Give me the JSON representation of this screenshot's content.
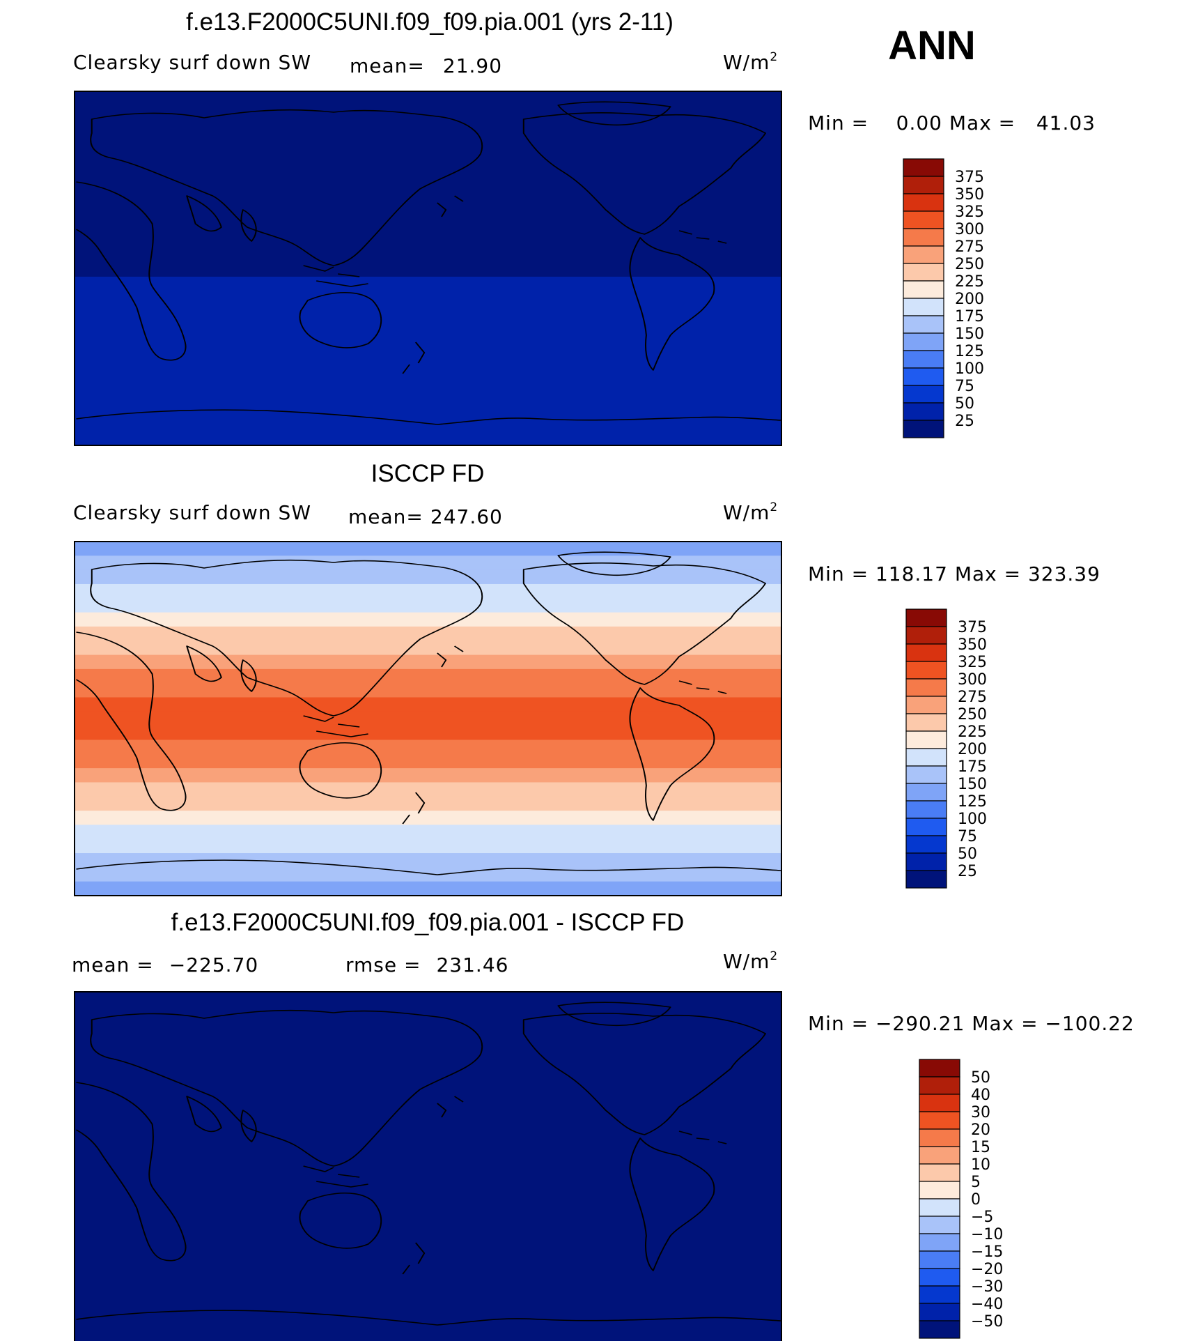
{
  "season": "ANN",
  "colors": {
    "abs_palette": [
      "#00137a",
      "#0022aa",
      "#0538cf",
      "#1f5bf0",
      "#4a7df5",
      "#7fa4f7",
      "#a9c3f9",
      "#d2e3fb",
      "#fdebdc",
      "#fcc9ab",
      "#f9a27a",
      "#f57a4a",
      "#ef5322",
      "#d93310",
      "#b01f0a",
      "#880a05"
    ],
    "diff_palette": [
      "#00137a",
      "#0022aa",
      "#0538cf",
      "#1f5bf0",
      "#4a7df5",
      "#7fa4f7",
      "#a9c3f9",
      "#d2e3fb",
      "#fdebdc",
      "#fcc9ab",
      "#f9a27a",
      "#f57a4a",
      "#ef5322",
      "#d93310",
      "#b01f0a",
      "#880a05"
    ]
  },
  "chart_data": [
    {
      "type": "heatmap",
      "title": "f.e13.F2000C5UNI.f09_f09.pia.001 (yrs 2-11)",
      "variable": "Clearsky surf down SW",
      "mean_label": "mean=",
      "mean_value": "21.90",
      "units": "W/m",
      "units_sup": "2",
      "min_max": "Min =    0.00 Max =   41.03",
      "colorbar_levels": [
        "375",
        "350",
        "325",
        "300",
        "275",
        "250",
        "225",
        "200",
        "175",
        "150",
        "125",
        "100",
        "75",
        "50",
        "25"
      ],
      "field": "two-band: ~25 north of 20S, ~40 south of 20S"
    },
    {
      "type": "heatmap",
      "title": "ISCCP FD",
      "variable": "Clearsky surf down SW",
      "mean_label": "mean=",
      "mean_value": "247.60",
      "units": "W/m",
      "units_sup": "2",
      "min_max": "Min = 118.17 Max = 323.39",
      "colorbar_levels": [
        "375",
        "350",
        "325",
        "300",
        "275",
        "250",
        "225",
        "200",
        "175",
        "150",
        "125",
        "100",
        "75",
        "50",
        "25"
      ],
      "field": "zonal bands peaking near the equator (~310) and decreasing poleward (~120)"
    },
    {
      "type": "heatmap",
      "title": "f.e13.F2000C5UNI.f09_f09.pia.001 - ISCCP FD",
      "mean_label": "mean =",
      "mean_value": "−225.70",
      "rmse_label": "rmse =",
      "rmse_value": "231.46",
      "units": "W/m",
      "units_sup": "2",
      "min_max": "Min = −290.21 Max = −100.22",
      "colorbar_levels": [
        "50",
        "40",
        "30",
        "20",
        "15",
        "10",
        "5",
        "0",
        "−5",
        "−10",
        "−15",
        "−20",
        "−30",
        "−40",
        "−50"
      ],
      "field": "uniformly below −50 everywhere"
    }
  ]
}
